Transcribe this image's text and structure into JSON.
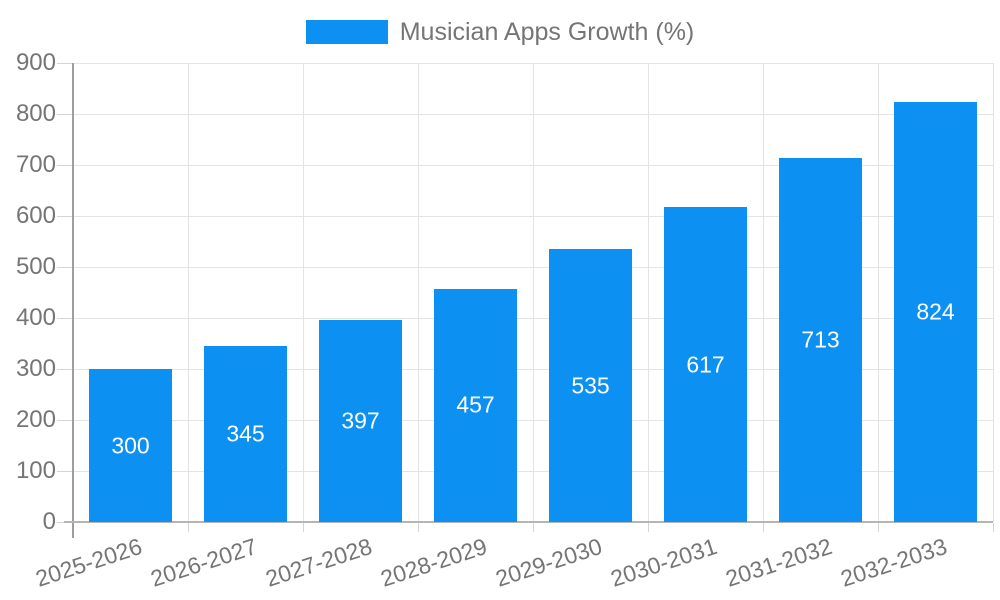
{
  "legend": {
    "label": "Musician Apps Growth (%)"
  },
  "chart_data": {
    "type": "bar",
    "title": "Musician Apps Growth (%)",
    "categories": [
      "2025-2026",
      "2026-2027",
      "2027-2028",
      "2028-2029",
      "2029-2030",
      "2030-2031",
      "2031-2032",
      "2032-2033"
    ],
    "series": [
      {
        "name": "Musician Apps Growth (%)",
        "values": [
          300,
          345,
          397,
          457,
          535,
          617,
          713,
          824
        ]
      }
    ],
    "value_labels": [
      "300",
      "345",
      "397",
      "457",
      "535",
      "617",
      "713",
      "824"
    ],
    "xlabel": "",
    "ylabel": "",
    "ylim": [
      0,
      900
    ],
    "ytick_step": 100,
    "ytick_labels": [
      "0",
      "100",
      "200",
      "300",
      "400",
      "500",
      "600",
      "700",
      "800",
      "900"
    ],
    "grid": true,
    "legend_position": "top",
    "colors": {
      "bar": "#0C90F2",
      "value_label": "#FFFFFF",
      "axis_text": "#757575",
      "gridline": "#E4E4E4",
      "tick": "#D5D5D5",
      "y_axis_line": "#9E9E9E",
      "x_axis_line": "#B5B5B5",
      "background": "#FFFFFF"
    }
  }
}
